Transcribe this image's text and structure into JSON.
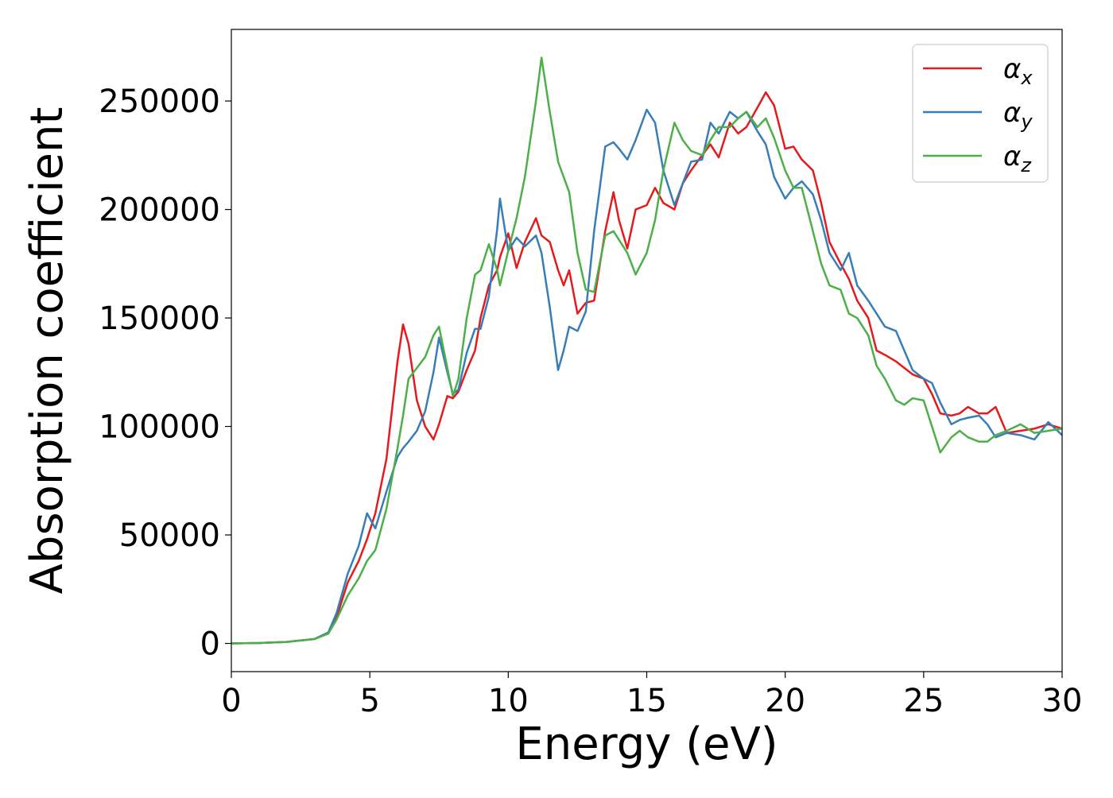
{
  "chart_data": {
    "type": "line",
    "title": "",
    "xlabel": "Energy (eV)",
    "ylabel": "Absorption coefficient",
    "xlim": [
      0,
      30
    ],
    "ylim": [
      -13000,
      283000
    ],
    "xticks": [
      0,
      5,
      10,
      15,
      20,
      25,
      30
    ],
    "xtick_labels": [
      "0",
      "5",
      "10",
      "15",
      "20",
      "25",
      "30"
    ],
    "yticks": [
      0,
      50000,
      100000,
      150000,
      200000,
      250000
    ],
    "ytick_labels": [
      "0",
      "50000",
      "100000",
      "150000",
      "200000",
      "250000"
    ],
    "grid": false,
    "legend_position": "top-right",
    "x": [
      0,
      1,
      2,
      3,
      3.5,
      3.8,
      4.2,
      4.6,
      4.9,
      5.2,
      5.6,
      6.0,
      6.2,
      6.4,
      6.7,
      7.0,
      7.3,
      7.5,
      7.8,
      8.0,
      8.2,
      8.5,
      8.8,
      9.0,
      9.3,
      9.6,
      9.7,
      10.0,
      10.3,
      10.6,
      11.0,
      11.2,
      11.5,
      11.8,
      12.0,
      12.2,
      12.5,
      12.8,
      13.1,
      13.5,
      13.8,
      14.0,
      14.3,
      14.6,
      15.0,
      15.3,
      15.6,
      16.0,
      16.3,
      16.6,
      17.0,
      17.3,
      17.6,
      18.0,
      18.3,
      18.6,
      19.0,
      19.3,
      19.6,
      20.0,
      20.3,
      20.6,
      21.0,
      21.3,
      21.6,
      22.0,
      22.3,
      22.6,
      23.0,
      23.3,
      23.6,
      24.0,
      24.3,
      24.6,
      25.0,
      25.3,
      25.6,
      26.0,
      26.3,
      26.6,
      27.0,
      27.3,
      27.6,
      28.0,
      28.5,
      29.0,
      29.5,
      30.0
    ],
    "series": [
      {
        "name": "α_x",
        "label_base": "α",
        "label_sub": "x",
        "color": "#e41a1c",
        "values": [
          0,
          200,
          700,
          2000,
          5000,
          12000,
          28000,
          38000,
          48000,
          60000,
          85000,
          130000,
          147000,
          138000,
          112000,
          100000,
          94000,
          101000,
          114000,
          113000,
          116000,
          126000,
          135000,
          150000,
          165000,
          172000,
          178000,
          189000,
          173000,
          185000,
          196000,
          188000,
          185000,
          172000,
          165000,
          172000,
          152000,
          157000,
          158000,
          190000,
          208000,
          195000,
          182000,
          200000,
          202000,
          210000,
          203000,
          200000,
          212000,
          218000,
          225000,
          230000,
          224000,
          240000,
          235000,
          238000,
          247000,
          254000,
          248000,
          228000,
          229000,
          223000,
          218000,
          203000,
          185000,
          175000,
          168000,
          158000,
          150000,
          135000,
          133000,
          130000,
          127000,
          124000,
          122000,
          115000,
          106000,
          105000,
          106000,
          109000,
          106000,
          106000,
          109000,
          97000,
          98000,
          99000,
          101000,
          99000
        ]
      },
      {
        "name": "α_y",
        "label_base": "α",
        "label_sub": "y",
        "color": "#377eb8",
        "values": [
          0,
          200,
          700,
          2000,
          5000,
          14000,
          32000,
          45000,
          60000,
          53000,
          70000,
          86000,
          90000,
          93000,
          98000,
          107000,
          125000,
          141000,
          125000,
          115000,
          117000,
          134000,
          145000,
          145000,
          160000,
          191000,
          205000,
          181000,
          187000,
          183000,
          188000,
          180000,
          155000,
          126000,
          135000,
          146000,
          144000,
          153000,
          190000,
          229000,
          231000,
          228000,
          223000,
          232000,
          246000,
          240000,
          218000,
          202000,
          212000,
          222000,
          223000,
          240000,
          235000,
          245000,
          242000,
          245000,
          236000,
          230000,
          215000,
          205000,
          210000,
          213000,
          207000,
          195000,
          180000,
          172000,
          180000,
          165000,
          158000,
          152000,
          146000,
          144000,
          135000,
          126000,
          122000,
          120000,
          111000,
          101000,
          103000,
          104000,
          105000,
          101000,
          95000,
          97000,
          96000,
          94000,
          102000,
          96000
        ]
      },
      {
        "name": "α_z",
        "label_base": "α",
        "label_sub": "z",
        "color": "#4daf4a",
        "values": [
          0,
          200,
          700,
          2000,
          4500,
          11000,
          22000,
          30000,
          38000,
          43000,
          62000,
          90000,
          105000,
          122000,
          127000,
          132000,
          142000,
          146000,
          127000,
          114000,
          122000,
          150000,
          170000,
          172000,
          184000,
          172000,
          165000,
          181000,
          196000,
          215000,
          250000,
          270000,
          245000,
          222000,
          215000,
          208000,
          180000,
          163000,
          162000,
          188000,
          190000,
          186000,
          180000,
          170000,
          180000,
          195000,
          218000,
          240000,
          232000,
          227000,
          225000,
          232000,
          238000,
          238000,
          242000,
          245000,
          238000,
          242000,
          233000,
          218000,
          210000,
          210000,
          190000,
          175000,
          165000,
          163000,
          152000,
          150000,
          142000,
          128000,
          122000,
          112000,
          110000,
          113000,
          112000,
          100000,
          88000,
          95000,
          98000,
          95000,
          93000,
          93000,
          96000,
          98000,
          101000,
          97000,
          98000,
          99000
        ]
      }
    ]
  }
}
